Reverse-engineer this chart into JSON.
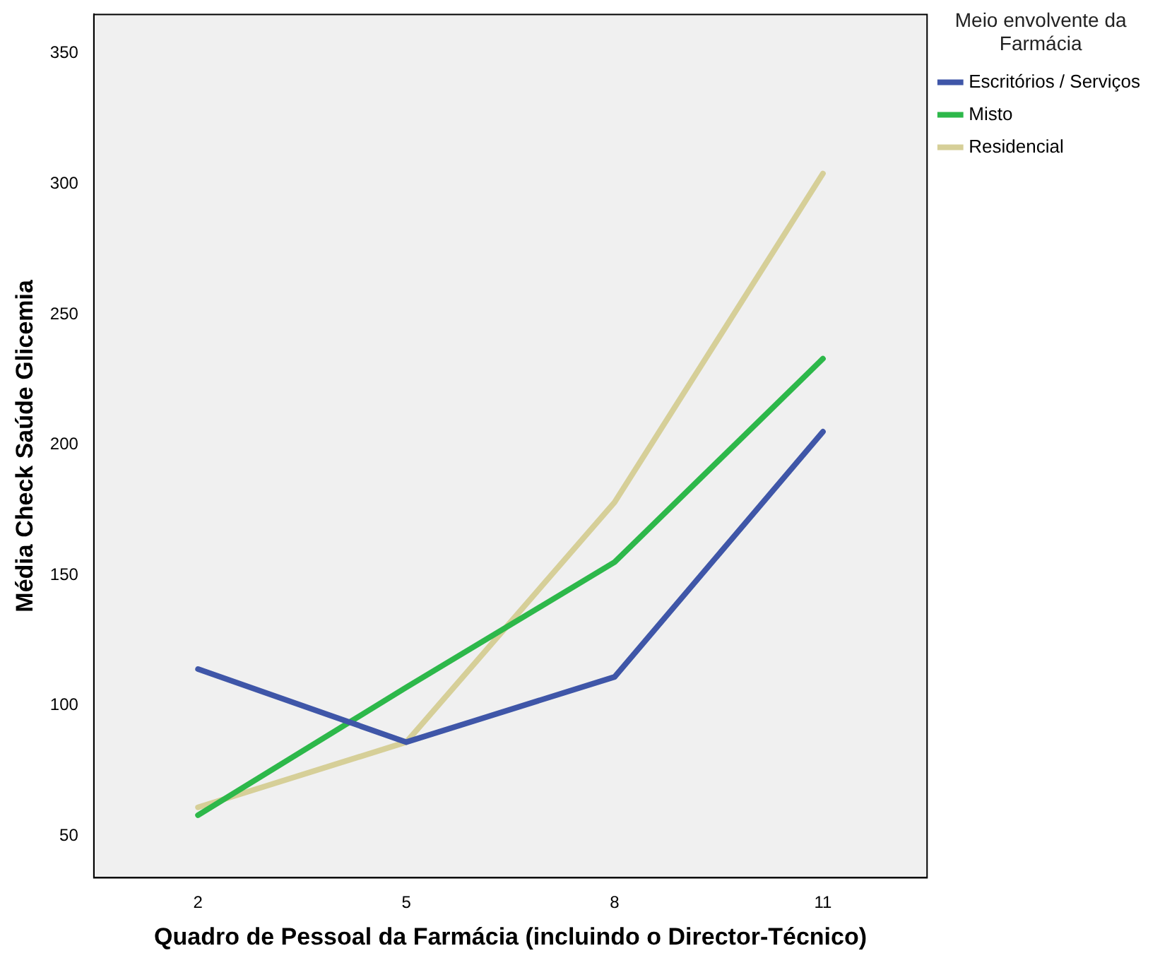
{
  "chart_data": {
    "type": "line",
    "xlabel": "Quadro de Pessoal da Farmácia (incluindo o Director-Técnico)",
    "ylabel": "Média Check Saúde Glicemia",
    "legend_title": "Meio envolvente da Farmácia",
    "categories": [
      "2",
      "5",
      "8",
      "11"
    ],
    "series": [
      {
        "name": "Escritórios / Serviços",
        "color": "#3f56a8",
        "values": [
          114,
          86,
          111,
          205
        ]
      },
      {
        "name": "Misto",
        "color": "#2db84a",
        "values": [
          58,
          107,
          155,
          233
        ]
      },
      {
        "name": "Residencial",
        "color": "#d6cf98",
        "values": [
          61,
          86,
          178,
          304
        ]
      }
    ],
    "ylim": [
      34,
      365
    ],
    "yticks": [
      50,
      100,
      150,
      200,
      250,
      300,
      350
    ],
    "grid": false,
    "legend": "right",
    "marker": "none",
    "line_style": "solid"
  }
}
